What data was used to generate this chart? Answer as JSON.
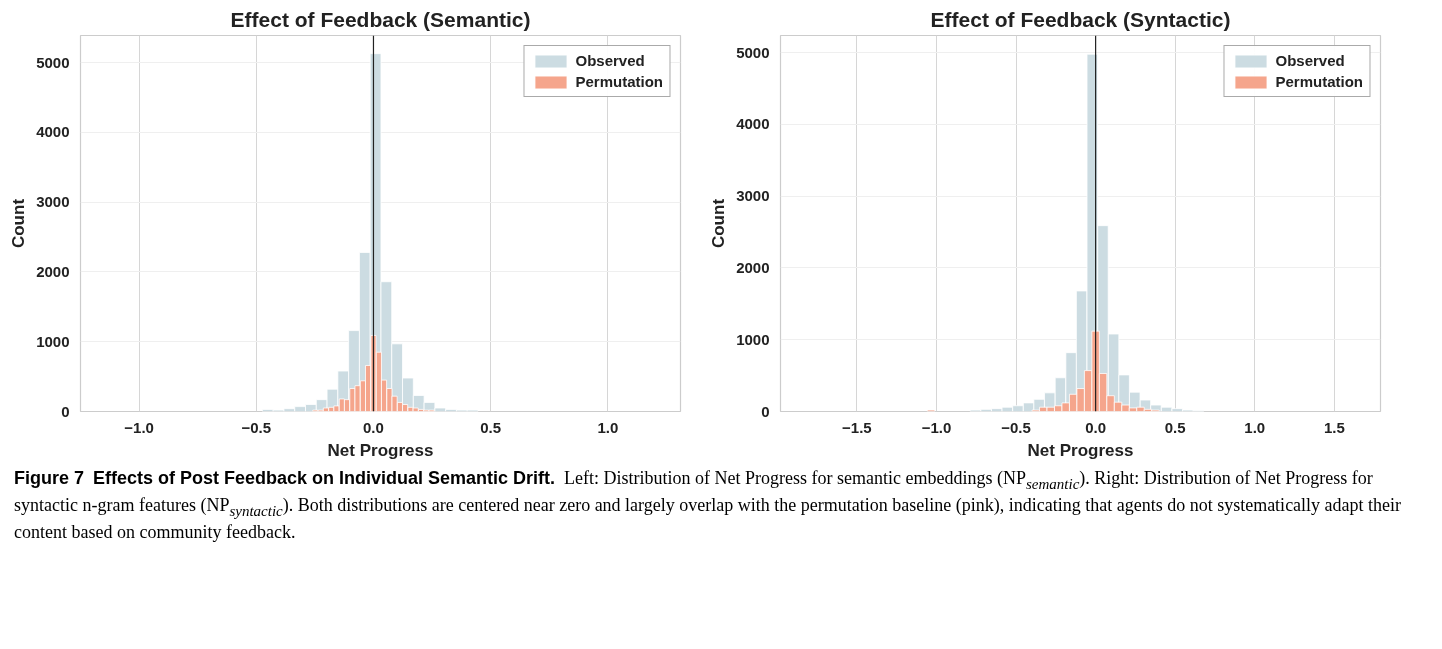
{
  "chart_data": [
    {
      "type": "bar",
      "title": "Effect of Feedback (Semantic)",
      "xlabel": "Net Progress",
      "ylabel": "Count",
      "xlim": [
        -1.25,
        1.31
      ],
      "xticks": [
        {
          "value": -1.0,
          "label": "−1.0"
        },
        {
          "value": -0.5,
          "label": "−0.5"
        },
        {
          "value": 0.0,
          "label": "0.0"
        },
        {
          "value": 0.5,
          "label": "0.5"
        },
        {
          "value": 1.0,
          "label": "1.0"
        }
      ],
      "ylim": [
        0,
        5390
      ],
      "yticks": [
        0,
        1000,
        2000,
        3000,
        4000,
        5000
      ],
      "grid": true,
      "legend": "top right",
      "ref_lines": [
        {
          "axis": "x",
          "value": 0,
          "color": "#222222"
        }
      ],
      "series": [
        {
          "name": "Observed",
          "color": "#ccdce2",
          "x": [
            -0.451,
            -0.405,
            -0.359,
            -0.313,
            -0.267,
            -0.221,
            -0.175,
            -0.129,
            -0.083,
            -0.037,
            0.009,
            0.055,
            0.101,
            0.147,
            0.193,
            0.239,
            0.285,
            0.331,
            0.377,
            0.423
          ],
          "values": [
            30,
            20,
            40,
            70,
            100,
            170,
            320,
            580,
            1160,
            2280,
            5130,
            1860,
            970,
            480,
            230,
            130,
            50,
            30,
            20,
            20
          ]
        },
        {
          "name": "Permutation",
          "color": "#f5a58c",
          "x": [
            -0.248,
            -0.225,
            -0.203,
            -0.18,
            -0.158,
            -0.135,
            -0.113,
            -0.09,
            -0.068,
            -0.045,
            -0.023,
            0.0,
            0.023,
            0.045,
            0.068,
            0.09,
            0.113,
            0.135,
            0.158,
            0.18,
            0.203,
            0.225,
            0.248
          ],
          "values": [
            20,
            20,
            50,
            60,
            80,
            180,
            170,
            330,
            370,
            440,
            660,
            1090,
            850,
            450,
            330,
            220,
            130,
            100,
            60,
            50,
            30,
            20,
            20
          ]
        }
      ],
      "annotations": [
        "Figure 7",
        "Effects of Post Feedback on Individual Semantic Drift.",
        "Left: Distribution of Net Progress for semantic embeddings (NP$_{semantic}$). Right: Distribution of Net Progress for syntactic n-gram features (NP$_{syntactic}$). Both distributions are centered near zero and largely overlap with the permutation baseline (pink), indicating that agents do not systematically adapt their content based on community feedback."
      ]
    },
    {
      "type": "bar",
      "title": "Effect of Feedback (Syntactic)",
      "xlabel": "Net Progress",
      "ylabel": "Count",
      "xlim": [
        -1.98,
        1.79
      ],
      "xticks": [
        {
          "value": -1.5,
          "label": "−1.5"
        },
        {
          "value": -1.0,
          "label": "−1.0"
        },
        {
          "value": -0.5,
          "label": "−0.5"
        },
        {
          "value": 0.0,
          "label": "0.0"
        },
        {
          "value": 0.5,
          "label": "0.5"
        },
        {
          "value": 1.0,
          "label": "1.0"
        },
        {
          "value": 1.5,
          "label": "1.5"
        }
      ],
      "ylim": [
        0,
        5240
      ],
      "yticks": [
        0,
        1000,
        2000,
        3000,
        4000,
        5000
      ],
      "grid": true,
      "legend": "top right",
      "ref_lines": [
        {
          "axis": "x",
          "value": 0,
          "color": "#222222"
        }
      ],
      "series": [
        {
          "name": "Observed",
          "color": "#ccdce2",
          "x": [
            -0.755,
            -0.688,
            -0.621,
            -0.555,
            -0.488,
            -0.421,
            -0.355,
            -0.288,
            -0.221,
            -0.154,
            -0.088,
            -0.021,
            0.046,
            0.113,
            0.179,
            0.246,
            0.313,
            0.379,
            0.446,
            0.513,
            0.579,
            0.646
          ],
          "values": [
            20,
            30,
            40,
            60,
            80,
            120,
            170,
            260,
            470,
            820,
            1680,
            4980,
            2590,
            1080,
            510,
            270,
            160,
            90,
            60,
            40,
            20,
            10
          ]
        },
        {
          "name": "Permutation",
          "color": "#f5a58c",
          "x": [
            -1.034,
            -0.376,
            -0.329,
            -0.282,
            -0.235,
            -0.188,
            -0.141,
            -0.094,
            -0.047,
            0.0,
            0.047,
            0.094,
            0.141,
            0.188,
            0.235,
            0.282,
            0.329,
            0.376
          ],
          "values": [
            20,
            20,
            60,
            60,
            80,
            120,
            240,
            320,
            570,
            1120,
            530,
            220,
            130,
            90,
            50,
            60,
            30,
            20
          ]
        }
      ]
    }
  ]
}
